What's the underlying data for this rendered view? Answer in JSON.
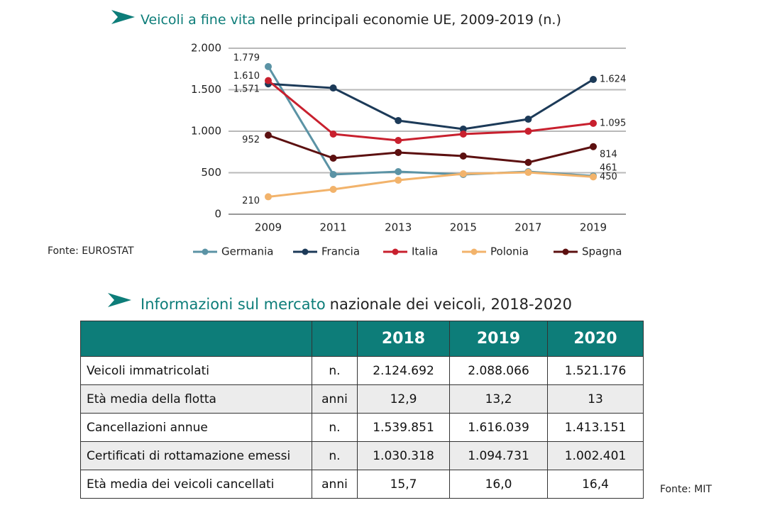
{
  "chart_data": {
    "type": "line",
    "title_parts": [
      "Veicoli a fine vita",
      "nelle principali economie UE, 2009-2019 (n.)"
    ],
    "categories": [
      "2009",
      "2011",
      "2013",
      "2015",
      "2017",
      "2019"
    ],
    "series": [
      {
        "name": "Germania",
        "color": "#5b93a5",
        "values": [
          1779,
          479,
          513,
          479,
          513,
          461
        ],
        "value_labels": [
          "1.779",
          null,
          null,
          null,
          null,
          "461"
        ]
      },
      {
        "name": "Francia",
        "color": "#1c3a58",
        "values": [
          1571,
          1521,
          1128,
          1026,
          1145,
          1624
        ],
        "value_labels": [
          "1.571",
          null,
          null,
          null,
          null,
          "1.624"
        ]
      },
      {
        "name": "Italia",
        "color": "#c8202e",
        "values": [
          1610,
          966,
          889,
          966,
          1000,
          1095
        ],
        "value_labels": [
          "1.610",
          null,
          null,
          null,
          null,
          "1.095"
        ]
      },
      {
        "name": "Polonia",
        "color": "#f2b36b",
        "values": [
          210,
          299,
          410,
          487,
          504,
          450
        ],
        "value_labels": [
          "210",
          null,
          null,
          null,
          null,
          "450"
        ]
      },
      {
        "name": "Spagna",
        "color": "#5c1010",
        "values": [
          952,
          675,
          744,
          701,
          624,
          814
        ],
        "value_labels": [
          "952",
          null,
          null,
          null,
          null,
          "814"
        ]
      }
    ],
    "ylim": [
      0,
      2000
    ],
    "yticks": [
      0,
      500,
      {
        "value": 1000,
        "label": "1.000"
      },
      {
        "value": 1500,
        "label": "1.500"
      },
      {
        "value": 2000,
        "label": "2.000"
      }
    ],
    "grid": true,
    "legend": "bottom",
    "source": "Fonte: EUROSTAT"
  },
  "table": {
    "title_parts": [
      "Informazioni sul mercato",
      "nazionale dei veicoli, 2018-2020"
    ],
    "header": [
      "2018",
      "2019",
      "2020"
    ],
    "rows": [
      [
        "Veicoli immatricolati",
        "n.",
        "2.124.692",
        "2.088.066",
        "1.521.176"
      ],
      [
        "Età media della flotta",
        "anni",
        "12,9",
        "13,2",
        "13"
      ],
      [
        "Cancellazioni annue",
        "n.",
        "1.539.851",
        "1.616.039",
        "1.413.151"
      ],
      [
        "Certificati di rottamazione emessi",
        "n.",
        "1.030.318",
        "1.094.731",
        "1.002.401"
      ],
      [
        "Età media dei veicoli cancellati",
        "anni",
        "15,7",
        "16,0",
        "16,4"
      ]
    ],
    "source": "Fonte: MIT"
  }
}
